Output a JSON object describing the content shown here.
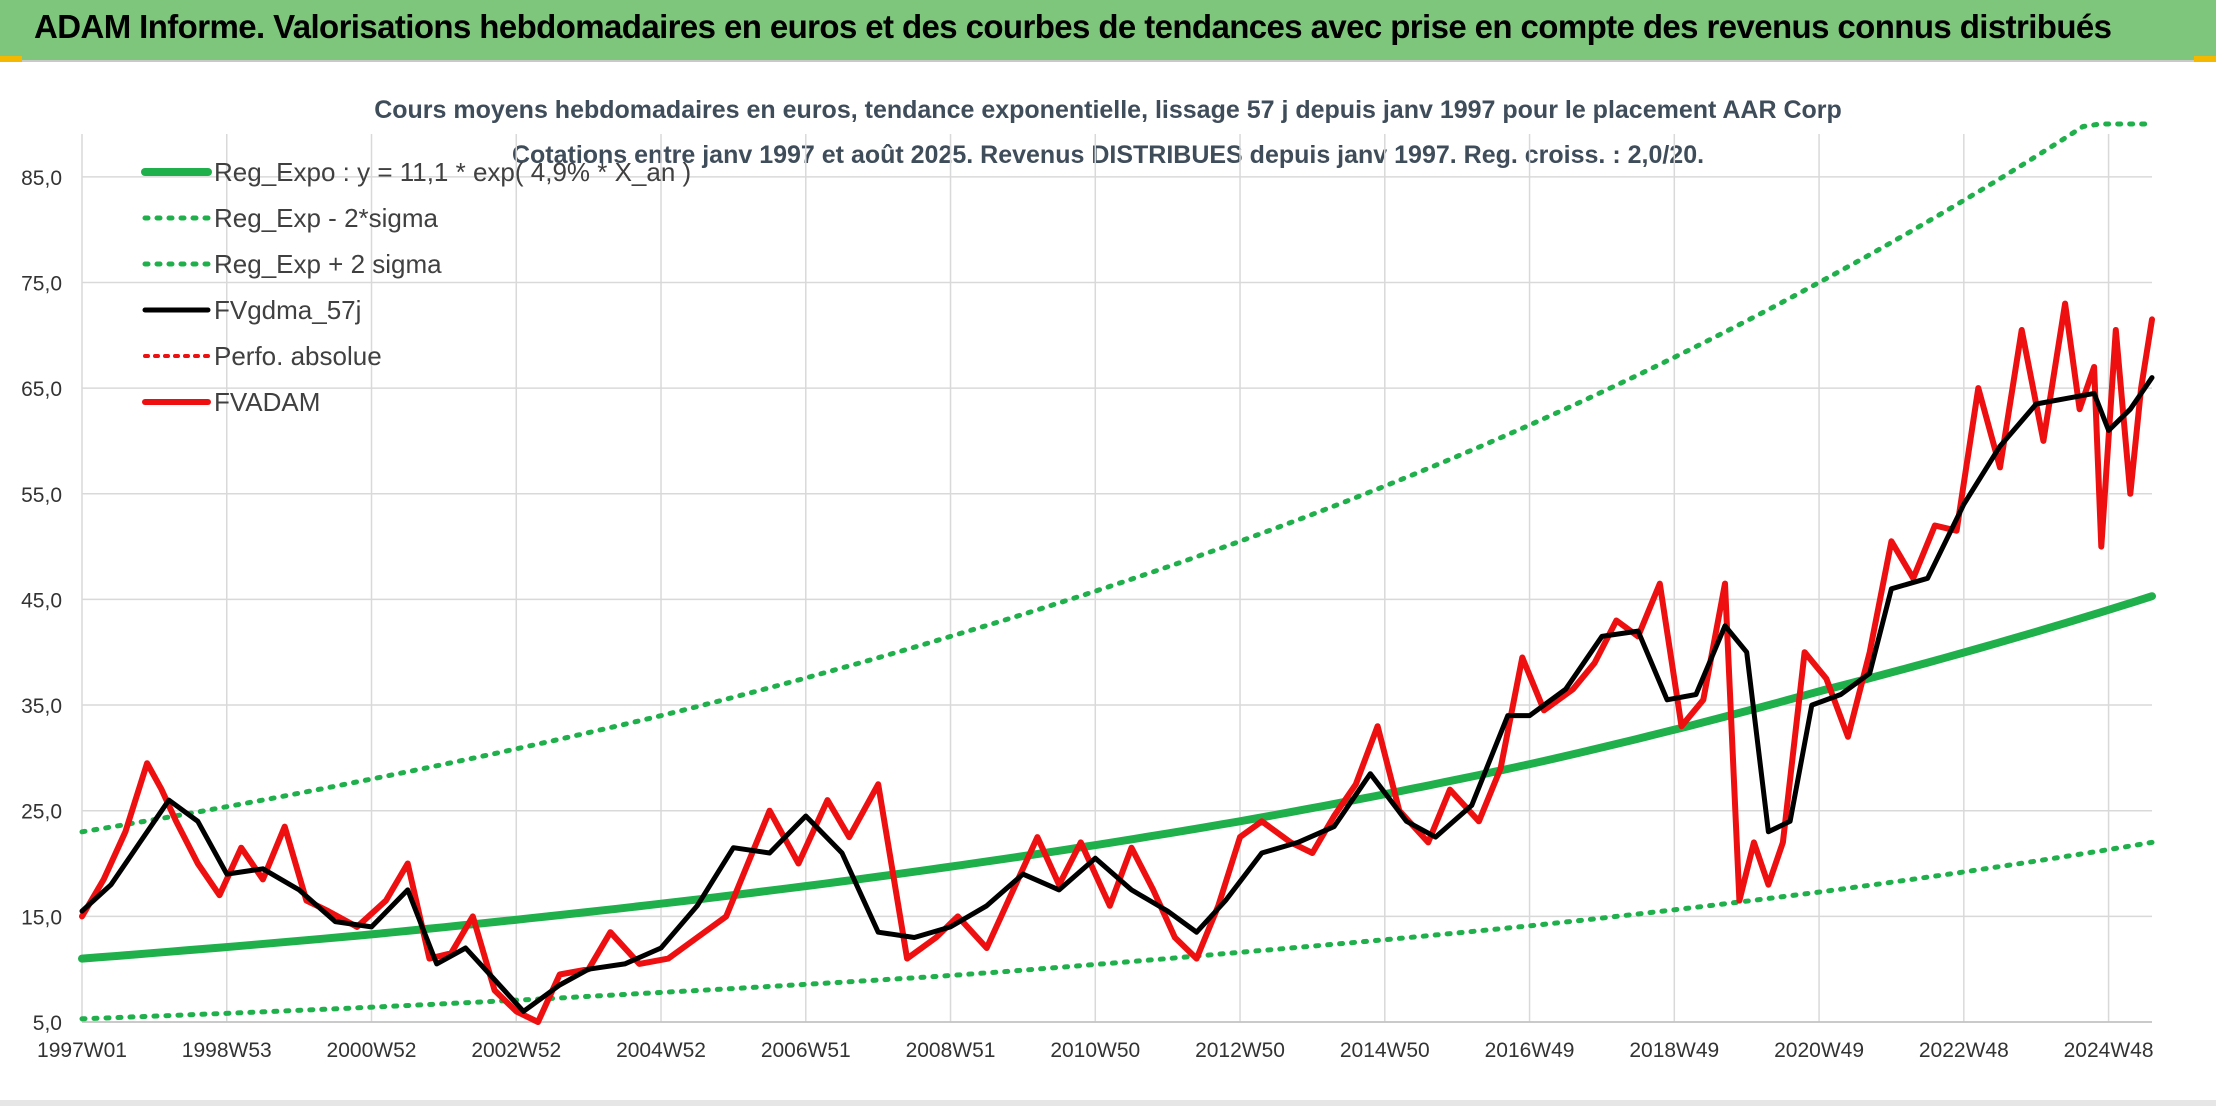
{
  "header": {
    "title": "ADAM Informe. Valorisations hebdomadaires en euros et des courbes de tendances avec prise en compte des revenus connus distribués"
  },
  "colors": {
    "header_bg": "#7dc67c",
    "trend_green": "#1fb04c",
    "price_red": "#ee1010",
    "smooth_black": "#000000",
    "grid": "#d9d9d9"
  },
  "chart_data": {
    "type": "line",
    "title": [
      "Cours moyens hebdomadaires en euros, tendance exponentielle, lissage 57 j depuis janv 1997 pour le placement AAR Corp",
      "Cotations entre janv 1997 et août 2025. Revenus DISTRIBUES depuis janv 1997. Reg. croiss. : 2,0/20."
    ],
    "xlabel": "",
    "ylabel": "",
    "x_range": [
      1997.0,
      2025.6
    ],
    "ylim": [
      5,
      90
    ],
    "y_ticks": [
      "85,0",
      "75,0",
      "65,0",
      "55,0",
      "45,0",
      "35,0",
      "25,0",
      "15,0",
      "5,0"
    ],
    "y_tick_values": [
      85,
      75,
      65,
      55,
      45,
      35,
      25,
      15,
      5
    ],
    "x_ticks": [
      "1997W01",
      "1998W53",
      "2000W52",
      "2002W52",
      "2004W52",
      "2006W51",
      "2008W51",
      "2010W50",
      "2012W50",
      "2014W50",
      "2016W49",
      "2018W49",
      "2020W49",
      "2022W48",
      "2024W48"
    ],
    "x_tick_values": [
      1997.0,
      1999.0,
      2001.0,
      2003.0,
      2005.0,
      2007.0,
      2009.0,
      2011.0,
      2013.0,
      2015.0,
      2017.0,
      2019.0,
      2021.0,
      2023.0,
      2025.0
    ],
    "grid": true,
    "legend_position": "top-left",
    "legend": [
      {
        "label": "Reg_Expo : y = 11,1 * exp( 4,9% *  X_an )",
        "color": "#1fb04c",
        "style": "solid"
      },
      {
        "label": "Reg_Exp - 2*sigma",
        "color": "#1fb04c",
        "style": "dotted"
      },
      {
        "label": "Reg_Exp + 2 sigma",
        "color": "#1fb04c",
        "style": "dotted"
      },
      {
        "label": "FVgdma_57j",
        "color": "#000000",
        "style": "solid"
      },
      {
        "label": "Perfo. absolue",
        "color": "#ee1010",
        "style": "dotted"
      },
      {
        "label": "FVADAM",
        "color": "#ee1010",
        "style": "solid"
      }
    ],
    "series": [
      {
        "name": "Reg_Expo : y = 11,1 * exp( 4,9% *  X_an )",
        "x": [
          1997.0,
          2001.0,
          2005.0,
          2009.0,
          2013.0,
          2017.0,
          2021.0,
          2025.6
        ],
        "values": [
          11.0,
          13.3,
          16.2,
          19.7,
          24.0,
          29.4,
          36.3,
          45.3
        ]
      },
      {
        "name": "Reg_Exp - 2*sigma",
        "x": [
          1997.0,
          2001.0,
          2005.0,
          2009.0,
          2013.0,
          2017.0,
          2021.0,
          2025.6
        ],
        "values": [
          5.3,
          6.4,
          7.8,
          9.4,
          11.6,
          14.1,
          17.3,
          22.0
        ]
      },
      {
        "name": "Reg_Exp + 2 sigma",
        "x": [
          1997.0,
          2001.0,
          2005.0,
          2009.0,
          2013.0,
          2017.0,
          2021.0,
          2024.7,
          2025.6
        ],
        "values": [
          23.0,
          28.0,
          34.0,
          41.5,
          50.5,
          61.5,
          75.0,
          90.0,
          90.0
        ]
      },
      {
        "name": "FVgdma_57j",
        "x": [
          1997.0,
          1997.4,
          1997.8,
          1998.2,
          1998.6,
          1999.0,
          1999.5,
          2000.0,
          2000.5,
          2001.0,
          2001.5,
          2001.9,
          2002.3,
          2002.7,
          2003.1,
          2003.6,
          2004.0,
          2004.5,
          2005.0,
          2005.5,
          2006.0,
          2006.5,
          2007.0,
          2007.5,
          2008.0,
          2008.5,
          2009.0,
          2009.5,
          2010.0,
          2010.5,
          2011.0,
          2011.5,
          2012.0,
          2012.4,
          2012.8,
          2013.3,
          2013.8,
          2014.3,
          2014.8,
          2015.3,
          2015.7,
          2016.2,
          2016.7,
          2017.0,
          2017.5,
          2018.0,
          2018.5,
          2018.9,
          2019.3,
          2019.7,
          2020.0,
          2020.3,
          2020.6,
          2020.9,
          2021.3,
          2021.7,
          2022.0,
          2022.5,
          2023.0,
          2023.5,
          2024.0,
          2024.4,
          2024.8,
          2025.0,
          2025.3,
          2025.6
        ],
        "values": [
          15.5,
          18.0,
          22.0,
          26.0,
          24.0,
          19.0,
          19.5,
          17.5,
          14.5,
          14.0,
          17.5,
          10.5,
          12.0,
          9.0,
          6.0,
          8.5,
          10.0,
          10.5,
          12.0,
          16.0,
          21.5,
          21.0,
          24.5,
          21.0,
          13.5,
          13.0,
          14.0,
          16.0,
          19.0,
          17.5,
          20.5,
          17.5,
          15.5,
          13.5,
          16.5,
          21.0,
          22.0,
          23.5,
          28.5,
          24.0,
          22.5,
          25.5,
          34.0,
          34.0,
          36.5,
          41.5,
          42.0,
          35.5,
          36.0,
          42.5,
          40.0,
          23.0,
          24.0,
          35.0,
          36.0,
          38.0,
          46.0,
          47.0,
          54.0,
          59.5,
          63.5,
          64.0,
          64.5,
          61.0,
          63.0,
          66.0
        ]
      },
      {
        "name": "FVADAM",
        "x": [
          1997.0,
          1997.3,
          1997.6,
          1997.9,
          1998.1,
          1998.3,
          1998.6,
          1998.9,
          1999.2,
          1999.5,
          1999.8,
          2000.1,
          2000.4,
          2000.8,
          2001.2,
          2001.5,
          2001.8,
          2002.1,
          2002.4,
          2002.7,
          2003.0,
          2003.3,
          2003.6,
          2004.0,
          2004.3,
          2004.7,
          2005.1,
          2005.5,
          2005.9,
          2006.2,
          2006.5,
          2006.9,
          2007.3,
          2007.6,
          2008.0,
          2008.4,
          2008.8,
          2009.1,
          2009.5,
          2009.8,
          2010.2,
          2010.5,
          2010.8,
          2011.2,
          2011.5,
          2011.8,
          2012.1,
          2012.4,
          2012.7,
          2013.0,
          2013.3,
          2013.7,
          2014.0,
          2014.3,
          2014.6,
          2014.9,
          2015.2,
          2015.6,
          2015.9,
          2016.3,
          2016.6,
          2016.9,
          2017.2,
          2017.6,
          2017.9,
          2018.2,
          2018.5,
          2018.8,
          2019.1,
          2019.4,
          2019.7,
          2019.9,
          2020.1,
          2020.3,
          2020.5,
          2020.8,
          2021.1,
          2021.4,
          2021.7,
          2022.0,
          2022.3,
          2022.6,
          2022.9,
          2023.2,
          2023.5,
          2023.8,
          2024.1,
          2024.4,
          2024.6,
          2024.8,
          2024.9,
          2025.1,
          2025.3,
          2025.45,
          2025.6
        ],
        "values": [
          15.0,
          18.5,
          23.0,
          29.5,
          27.0,
          24.0,
          20.0,
          17.0,
          21.5,
          18.5,
          23.5,
          16.5,
          15.5,
          14.0,
          16.5,
          20.0,
          11.0,
          11.5,
          15.0,
          8.0,
          6.0,
          5.0,
          9.5,
          10.0,
          13.5,
          10.5,
          11.0,
          13.0,
          15.0,
          20.0,
          25.0,
          20.0,
          26.0,
          22.5,
          27.5,
          11.0,
          13.0,
          15.0,
          12.0,
          16.5,
          22.5,
          18.0,
          22.0,
          16.0,
          21.5,
          17.5,
          13.0,
          11.0,
          16.0,
          22.5,
          24.0,
          22.0,
          21.0,
          24.5,
          27.5,
          33.0,
          25.0,
          22.0,
          27.0,
          24.0,
          29.0,
          39.5,
          34.5,
          36.5,
          39.0,
          43.0,
          41.5,
          46.5,
          33.0,
          35.5,
          46.5,
          16.5,
          22.0,
          18.0,
          22.0,
          40.0,
          37.5,
          32.0,
          40.0,
          50.5,
          47.0,
          52.0,
          51.5,
          65.0,
          57.5,
          70.5,
          60.0,
          73.0,
          63.0,
          67.0,
          50.0,
          70.5,
          55.0,
          65.0,
          71.5
        ]
      }
    ]
  }
}
